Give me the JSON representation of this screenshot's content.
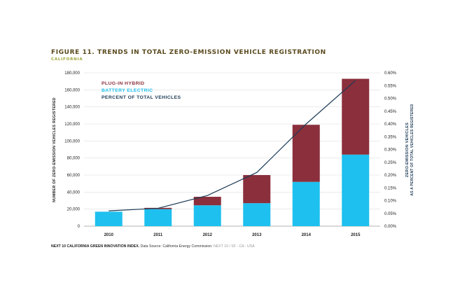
{
  "header": {
    "title": "FIGURE 11. TRENDS IN TOTAL ZERO-EMISSION VEHICLE REGISTRATION",
    "subtitle": "CALIFORNIA"
  },
  "source": {
    "part1": "NEXT 10 CALIFORNIA GREEN INNOVATION INDEX.",
    "part2": " Data Source: California Energy Commission.",
    "part3": " NEXT 10 / SF - CA - USA"
  },
  "chart_data": {
    "type": "bar",
    "stacked": true,
    "categories": [
      "2010",
      "2011",
      "2012",
      "2013",
      "2014",
      "2015"
    ],
    "series": [
      {
        "name": "BATTERY ELECTRIC",
        "type": "bar",
        "color": "#1ec0ef",
        "values": [
          17000,
          20000,
          24500,
          27000,
          52000,
          84000
        ]
      },
      {
        "name": "PLUG-IN HYBRID",
        "type": "bar",
        "color": "#8b2f3c",
        "values": [
          0,
          1500,
          10000,
          33000,
          67000,
          89000
        ]
      },
      {
        "name": "PERCENT OF TOTAL VEHICLES",
        "type": "line",
        "axis": "right",
        "color": "#1b3a55",
        "values": [
          0.06,
          0.07,
          0.12,
          0.21,
          0.4,
          0.57
        ]
      }
    ],
    "ylim": [
      0,
      180000
    ],
    "yticks": [
      "0",
      "20,000",
      "40,000",
      "60,000",
      "80,000",
      "100,000",
      "120,000",
      "140,000",
      "160,000",
      "180,000"
    ],
    "ylabel": "NUMBER OF ZERO-EMISSION VEHICLES REGISTERED",
    "y2lim": [
      0,
      0.6
    ],
    "y2ticks": [
      "0.00%",
      "0.05%",
      "0.10%",
      "0.15%",
      "0.20%",
      "0.25%",
      "0.30%",
      "0.35%",
      "0.40%",
      "0.45%",
      "0.50%",
      "0.55%",
      "0.60%"
    ],
    "y2label": [
      "ZERO-EMISSION VEHICLES",
      "AS A PERCENT OF TOTAL VEHICLES REGISTERED"
    ],
    "legend": [
      {
        "label": "PLUG-IN HYBRID",
        "color": "#8b2f3c"
      },
      {
        "label": "BATTERY ELECTRIC",
        "color": "#1ec0ef"
      },
      {
        "label": "PERCENT OF TOTAL VEHICLES",
        "color": "#1b3a55"
      }
    ],
    "legend_position": "top-left",
    "grid": true
  }
}
